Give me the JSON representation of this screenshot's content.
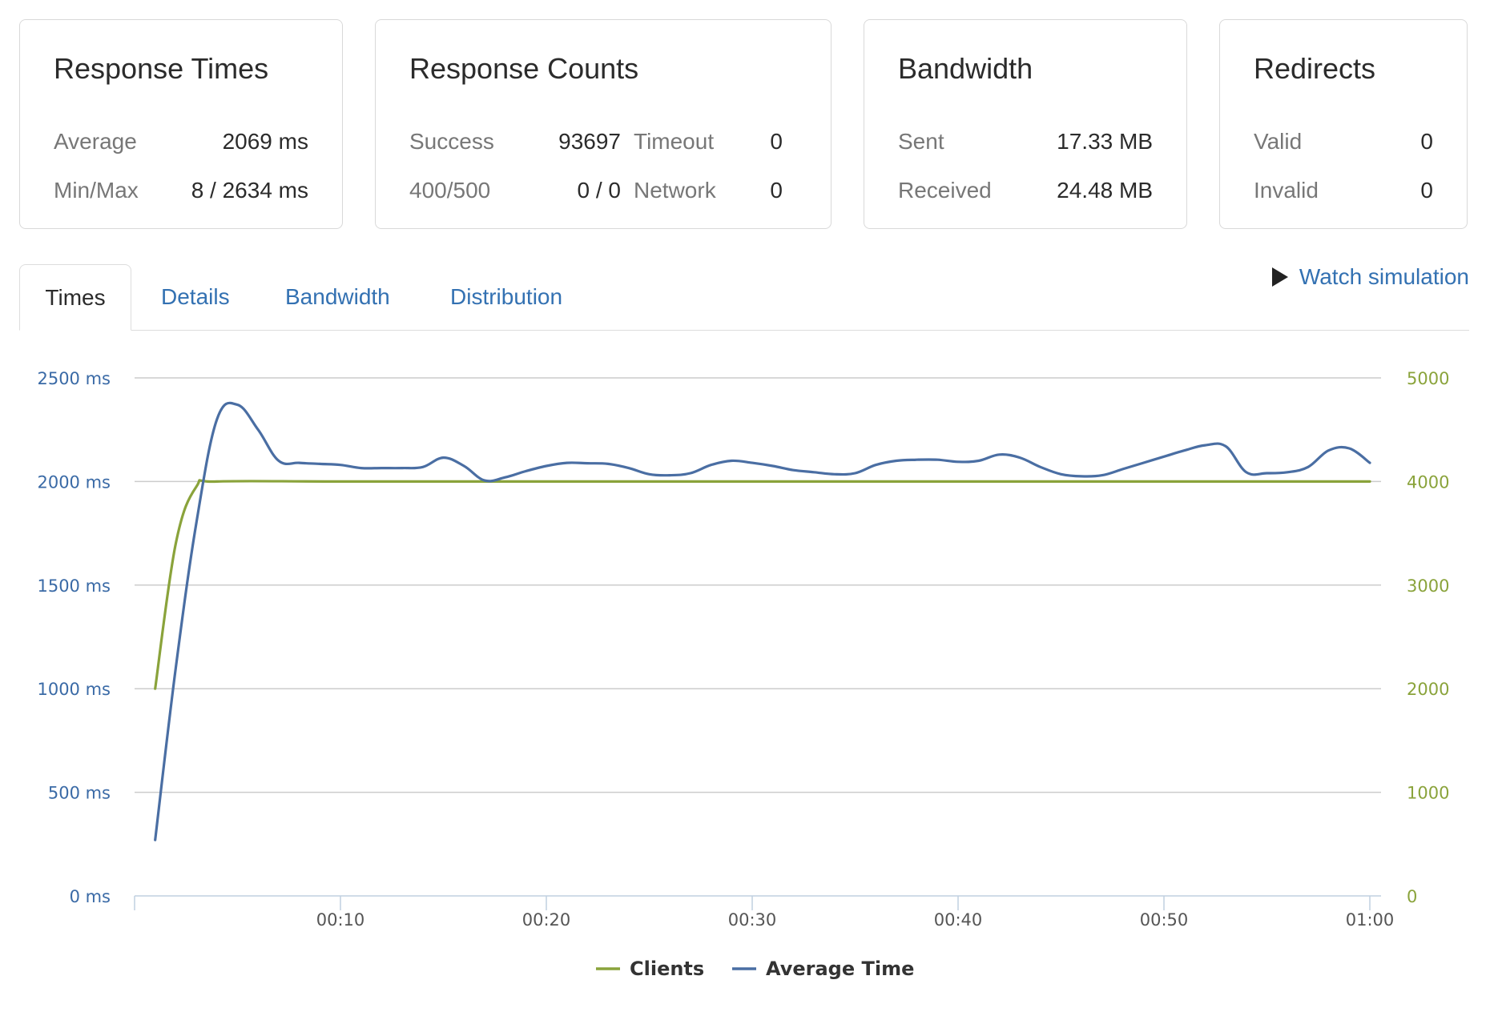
{
  "cards": {
    "response_times": {
      "title": "Response Times",
      "average_label": "Average",
      "average_value": "2069 ms",
      "minmax_label": "Min/Max",
      "minmax_value": "8 / 2634 ms"
    },
    "response_counts": {
      "title": "Response Counts",
      "success_label": "Success",
      "success_value": "93697",
      "timeout_label": "Timeout",
      "timeout_value": "0",
      "errors_label": "400/500",
      "errors_value": "0 / 0",
      "network_label": "Network",
      "network_value": "0"
    },
    "bandwidth": {
      "title": "Bandwidth",
      "sent_label": "Sent",
      "sent_value": "17.33 MB",
      "received_label": "Received",
      "received_value": "24.48 MB"
    },
    "redirects": {
      "title": "Redirects",
      "valid_label": "Valid",
      "valid_value": "0",
      "invalid_label": "Invalid",
      "invalid_value": "0"
    }
  },
  "tabs": [
    {
      "label": "Times",
      "active": true
    },
    {
      "label": "Details",
      "active": false
    },
    {
      "label": "Bandwidth",
      "active": false
    },
    {
      "label": "Distribution",
      "active": false
    }
  ],
  "watch_simulation": {
    "label": "Watch simulation",
    "icon": "play-icon"
  },
  "colors": {
    "clients": "#8aa33b",
    "average_time": "#4a6ea3",
    "grid": "#cccccc"
  },
  "chart_data": {
    "type": "line",
    "title": "",
    "xlabel": "",
    "ylabel": "",
    "xlim": [
      0,
      60
    ],
    "x_ticks": [
      "00:10",
      "00:20",
      "00:30",
      "00:40",
      "00:50",
      "01:00"
    ],
    "x_tick_values": [
      10,
      20,
      30,
      40,
      50,
      60
    ],
    "y_left": {
      "range": [
        0,
        2500
      ],
      "ticks": [
        "0 ms",
        "500 ms",
        "1000 ms",
        "1500 ms",
        "2000 ms",
        "2500 ms"
      ],
      "tick_values": [
        0,
        500,
        1000,
        1500,
        2000,
        2500
      ]
    },
    "y_right": {
      "range": [
        0,
        5000
      ],
      "ticks": [
        "0",
        "1000",
        "2000",
        "3000",
        "4000",
        "5000"
      ],
      "tick_values": [
        0,
        1000,
        2000,
        3000,
        4000,
        5000
      ]
    },
    "grid": true,
    "legend_position": "bottom-center",
    "series": [
      {
        "name": "Clients",
        "axis": "right",
        "x": [
          1,
          2,
          3,
          4,
          10,
          20,
          30,
          40,
          50,
          60
        ],
        "values": [
          2000,
          3400,
          3950,
          4000,
          4000,
          4000,
          4000,
          4000,
          4000,
          4000
        ]
      },
      {
        "name": "Average Time",
        "axis": "left",
        "x": [
          1,
          2,
          3,
          4,
          5,
          6,
          7,
          8,
          9,
          10,
          11,
          12,
          13,
          14,
          15,
          16,
          17,
          18,
          19,
          20,
          21,
          22,
          23,
          24,
          25,
          26,
          27,
          28,
          29,
          30,
          31,
          32,
          33,
          34,
          35,
          36,
          37,
          38,
          39,
          40,
          41,
          42,
          43,
          44,
          45,
          46,
          47,
          48,
          49,
          50,
          51,
          52,
          53,
          54,
          55,
          56,
          57,
          58,
          59,
          60
        ],
        "values": [
          270,
          1100,
          1800,
          2300,
          2370,
          2250,
          2100,
          2090,
          2085,
          2080,
          2065,
          2065,
          2065,
          2070,
          2115,
          2075,
          2005,
          2020,
          2050,
          2075,
          2090,
          2088,
          2085,
          2065,
          2035,
          2030,
          2040,
          2080,
          2100,
          2090,
          2075,
          2055,
          2045,
          2035,
          2040,
          2080,
          2100,
          2105,
          2105,
          2095,
          2100,
          2130,
          2115,
          2070,
          2035,
          2025,
          2030,
          2060,
          2090,
          2120,
          2150,
          2175,
          2170,
          2045,
          2040,
          2045,
          2070,
          2150,
          2160,
          2090
        ]
      }
    ]
  }
}
